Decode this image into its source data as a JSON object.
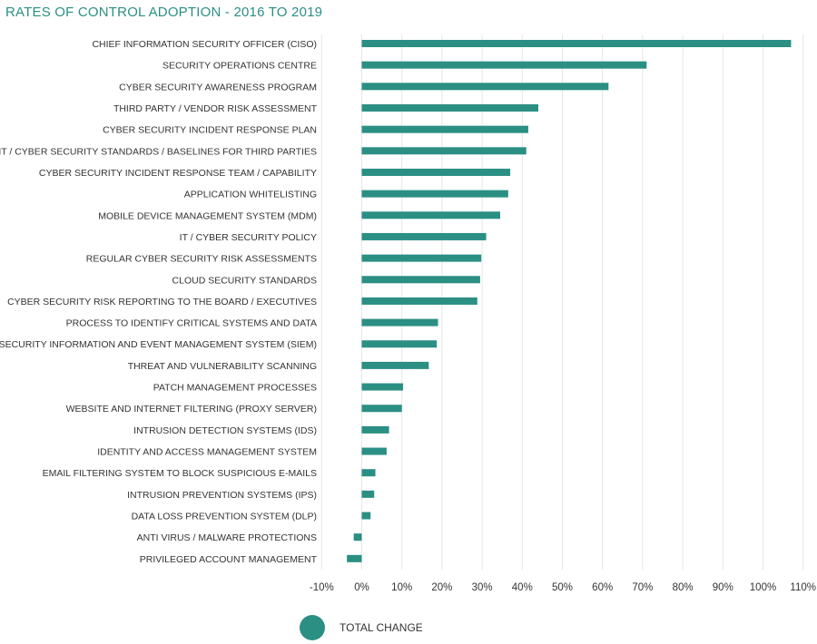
{
  "chart_data": {
    "type": "bar",
    "orientation": "horizontal",
    "title": "RATES OF CONTROL ADOPTION - 2016 TO 2019",
    "xlabel": "",
    "ylabel": "",
    "xlim": [
      -0.1,
      1.1
    ],
    "xticks": [
      -0.1,
      0.0,
      0.1,
      0.2,
      0.3,
      0.4,
      0.5,
      0.6,
      0.7,
      0.8,
      0.9,
      1.0,
      1.1
    ],
    "xtick_labels": [
      "-10%",
      "0%",
      "10%",
      "20%",
      "30%",
      "40%",
      "50%",
      "60%",
      "70%",
      "80%",
      "90%",
      "100%",
      "110%"
    ],
    "grid": "vertical",
    "legend_position": "bottom",
    "color": "#2b8f84",
    "categories": [
      "CHIEF INFORMATION SECURITY OFFICER (CISO)",
      "SECURITY OPERATIONS CENTRE",
      "CYBER SECURITY AWARENESS PROGRAM",
      "THIRD PARTY / VENDOR RISK ASSESSMENT",
      "CYBER SECURITY INCIDENT RESPONSE PLAN",
      "IT / CYBER SECURITY STANDARDS / BASELINES FOR THIRD PARTIES",
      "CYBER SECURITY INCIDENT RESPONSE TEAM / CAPABILITY",
      "APPLICATION WHITELISTING",
      "MOBILE DEVICE MANAGEMENT SYSTEM (MDM)",
      "IT / CYBER SECURITY POLICY",
      "REGULAR CYBER SECURITY RISK ASSESSMENTS",
      "CLOUD SECURITY STANDARDS",
      "CYBER SECURITY RISK REPORTING TO THE BOARD / EXECUTIVES",
      "PROCESS TO IDENTIFY CRITICAL SYSTEMS AND DATA",
      "SECURITY INFORMATION AND EVENT MANAGEMENT SYSTEM (SIEM)",
      "THREAT AND VULNERABILITY SCANNING",
      "PATCH MANAGEMENT PROCESSES",
      "WEBSITE AND INTERNET FILTERING (PROXY SERVER)",
      "INTRUSION DETECTION SYSTEMS (IDS)",
      "IDENTITY AND ACCESS MANAGEMENT SYSTEM",
      "EMAIL FILTERING SYSTEM TO BLOCK SUSPICIOUS E-MAILS",
      "INTRUSION PREVENTION SYSTEMS (IPS)",
      "DATA LOSS PREVENTION SYSTEM (DLP)",
      "ANTI VIRUS / MALWARE PROTECTIONS",
      "PRIVILEGED ACCOUNT MANAGEMENT"
    ],
    "series": [
      {
        "name": "TOTAL CHANGE",
        "values": [
          1.07,
          0.71,
          0.615,
          0.44,
          0.415,
          0.41,
          0.37,
          0.365,
          0.345,
          0.31,
          0.298,
          0.295,
          0.288,
          0.19,
          0.187,
          0.167,
          0.103,
          0.1,
          0.068,
          0.062,
          0.034,
          0.031,
          0.022,
          -0.02,
          -0.037
        ]
      }
    ]
  }
}
